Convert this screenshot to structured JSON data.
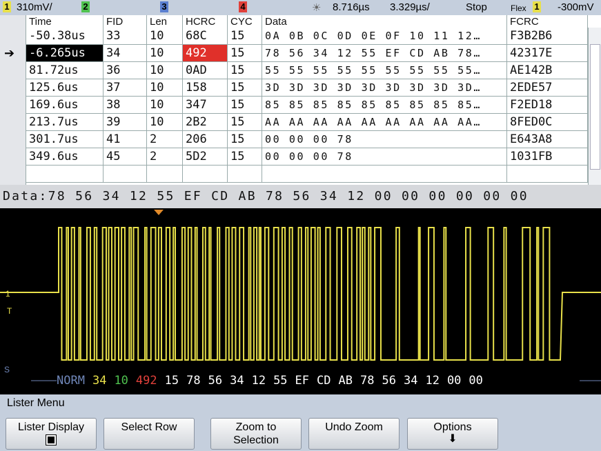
{
  "status_bar": {
    "ch1_badge": "1",
    "ch1_scale": "310mV/",
    "ch2_badge": "2",
    "ch3_badge": "3",
    "ch4_badge": "4",
    "trigger_time": "8.716µs",
    "timebase": "3.329µs/",
    "run_state": "Stop",
    "trigger_source": "Flex",
    "trigger_channel": "1",
    "trigger_level": "-300mV"
  },
  "lister": {
    "columns": [
      "Time",
      "FID",
      "Len",
      "HCRC",
      "CYC",
      "Data",
      "FCRC"
    ],
    "rows": [
      [
        "-50.38us",
        "33",
        "10",
        "68C",
        "15",
        "0A 0B 0C 0D 0E 0F 10 11 12…",
        "F3B2B6"
      ],
      [
        "-6.265us",
        "34",
        "10",
        "492",
        "15",
        "78 56 34 12 55 EF CD AB 78…",
        "42317E"
      ],
      [
        "81.72us",
        "36",
        "10",
        "0AD",
        "15",
        "55 55 55 55 55 55 55 55 55…",
        "AE142B"
      ],
      [
        "125.6us",
        "37",
        "10",
        "158",
        "15",
        "3D 3D 3D 3D 3D 3D 3D 3D 3D…",
        "2EDE57"
      ],
      [
        "169.6us",
        "38",
        "10",
        "347",
        "15",
        "85 85 85 85 85 85 85 85 85…",
        "F2ED18"
      ],
      [
        "213.7us",
        "39",
        "10",
        "2B2",
        "15",
        "AA AA AA AA AA AA AA AA AA…",
        "8FED0C"
      ],
      [
        "301.7us",
        "41",
        "2",
        "206",
        "15",
        "00 00 00 78",
        "E643A8"
      ],
      [
        "349.6us",
        "45",
        "2",
        "5D2",
        "15",
        "00 00 00 78",
        "1031FB"
      ]
    ]
  },
  "data_line": "Data:78 56 34 12 55 EF CD AB 78 56 34 12 00 00 00 00 00 00",
  "waveform": {
    "ch1_marker": "1",
    "trigger_marker": "T",
    "serial_marker": "S",
    "decode": [
      {
        "text": "NORM",
        "color": "#6f86b8"
      },
      {
        "text": "34",
        "color": "#e8e04a"
      },
      {
        "text": "10",
        "color": "#4fc24f"
      },
      {
        "text": "492",
        "color": "#e0403a"
      },
      {
        "text": "15",
        "color": "#ffffff"
      },
      {
        "text": "78",
        "color": "#ffffff"
      },
      {
        "text": "56",
        "color": "#ffffff"
      },
      {
        "text": "34",
        "color": "#ffffff"
      },
      {
        "text": "12",
        "color": "#ffffff"
      },
      {
        "text": "55",
        "color": "#ffffff"
      },
      {
        "text": "EF",
        "color": "#ffffff"
      },
      {
        "text": "CD",
        "color": "#ffffff"
      },
      {
        "text": "AB",
        "color": "#ffffff"
      },
      {
        "text": "78",
        "color": "#ffffff"
      },
      {
        "text": "56",
        "color": "#ffffff"
      },
      {
        "text": "34",
        "color": "#ffffff"
      },
      {
        "text": "12",
        "color": "#ffffff"
      },
      {
        "text": "00",
        "color": "#ffffff"
      },
      {
        "text": "00",
        "color": "#ffffff"
      }
    ]
  },
  "menu": {
    "title": "Lister Menu",
    "softkeys": [
      "Lister Display",
      "Select Row",
      "Zoom to Selection",
      "Undo Zoom",
      "Options"
    ]
  }
}
